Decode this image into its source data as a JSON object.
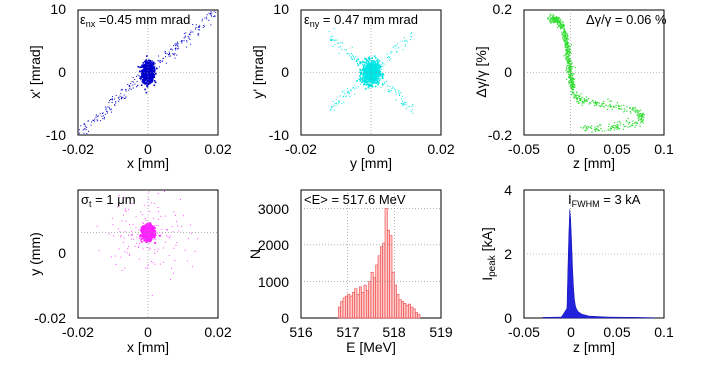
{
  "panels": [
    {
      "id": "xxp",
      "box_title": "ε",
      "box_title_sub": "nx",
      "box_title_rest": " =0.45 mm mrad",
      "xlabel": "x [mm]",
      "ylabel": "x' [mrad]",
      "xticks": [
        "-0.02",
        "0",
        "0.02"
      ],
      "yticks": [
        "10",
        "0",
        "-10"
      ]
    },
    {
      "id": "yyp",
      "box_title": "ε",
      "box_title_sub": "ny",
      "box_title_rest": " = 0.47 mm mrad",
      "xlabel": "y [mm]",
      "ylabel": "y' [mrad]",
      "xticks": [
        "-0.02",
        "0",
        "0.02"
      ],
      "yticks": [
        "10",
        "0",
        "-10"
      ]
    },
    {
      "id": "zdg",
      "box_title": "Δγ/γ = 0.06 %",
      "xlabel": "z [mm]",
      "ylabel": "Δγ/γ [%]",
      "xticks": [
        "-0.05",
        "0",
        "0.05",
        "0.1"
      ],
      "yticks": [
        "0.2",
        "0",
        "-0.2"
      ]
    },
    {
      "id": "xy",
      "box_title": "σ",
      "box_title_sub": "t",
      "box_title_rest": " = 1 μm",
      "xlabel": "x [mm]",
      "ylabel": "y (mm)",
      "xticks": [
        "-0.02",
        "0",
        "0.02"
      ],
      "yticks": [
        "0",
        "-0.02"
      ]
    },
    {
      "id": "ehist",
      "box_title": "<E> = 517.6 MeV",
      "xlabel": "E [MeV]",
      "ylabel": "N",
      "xticks": [
        "516",
        "517",
        "518",
        "519"
      ],
      "yticks": [
        "3000",
        "2000",
        "1000",
        "0"
      ]
    },
    {
      "id": "current",
      "box_title": "I",
      "box_title_sub": "FWHM",
      "box_title_rest": " = 3 kA",
      "xlabel": "z [mm]",
      "ylabel_main": "I",
      "ylabel_sub": "peak",
      "ylabel_rest": " [kA]",
      "xticks": [
        "-0.05",
        "0",
        "0.05",
        "0.1"
      ],
      "yticks": [
        "4",
        "2",
        "0"
      ]
    }
  ],
  "colors": {
    "xxp": "#0000cc",
    "yyp": "#00e5e5",
    "zdg": "#33dd33",
    "xy": "#ff22ff",
    "ehist": "#ee4444",
    "current": "#2222dd"
  },
  "chart_data": [
    {
      "type": "scatter",
      "title": "ε nx =0.45 mm mrad",
      "xlabel": "x [mm]",
      "ylabel": "x' [mrad]",
      "xlim": [
        -0.02,
        0.02
      ],
      "ylim": [
        -10,
        10
      ],
      "grid": true,
      "series": [
        {
          "core_center": [
            0,
            0
          ],
          "core_sigma": [
            0.0008,
            0.8
          ],
          "halo_slope_mrad_per_mm": 500
        }
      ]
    },
    {
      "type": "scatter",
      "title": "ε ny = 0.47 mm mrad",
      "xlabel": "y [mm]",
      "ylabel": "y' [mrad]",
      "xlim": [
        -0.02,
        0.02
      ],
      "ylim": [
        -10,
        10
      ],
      "grid": true,
      "series": [
        {
          "core_center": [
            0,
            0
          ],
          "core_sigma": [
            0.0012,
            0.9
          ],
          "halo": "x-shaped"
        }
      ]
    },
    {
      "type": "scatter",
      "title": "Δγ/γ = 0.06 %",
      "xlabel": "z [mm]",
      "ylabel": "Δγ/γ [%]",
      "xlim": [
        -0.05,
        0.1
      ],
      "ylim": [
        -0.2,
        0.2
      ],
      "grid": true,
      "series": [
        {
          "curve": [
            [
              -0.022,
              0.17
            ],
            [
              -0.014,
              0.17
            ],
            [
              -0.008,
              0.14
            ],
            [
              -0.004,
              0.09
            ],
            [
              -0.002,
              0.04
            ],
            [
              0.0,
              -0.01
            ],
            [
              0.002,
              -0.05
            ],
            [
              0.006,
              -0.08
            ],
            [
              0.014,
              -0.09
            ],
            [
              0.03,
              -0.1
            ],
            [
              0.05,
              -0.11
            ],
            [
              0.07,
              -0.12
            ],
            [
              0.078,
              -0.14
            ],
            [
              0.07,
              -0.16
            ],
            [
              0.05,
              -0.175
            ],
            [
              0.03,
              -0.18
            ],
            [
              0.015,
              -0.175
            ]
          ]
        }
      ]
    },
    {
      "type": "scatter",
      "title": "σ t = 1 μm",
      "xlabel": "x [mm]",
      "ylabel": "y (mm)",
      "xlim": [
        -0.02,
        0.02
      ],
      "ylim": [
        -0.02,
        0.01
      ],
      "grid": true,
      "series": [
        {
          "core_center": [
            0,
            0
          ],
          "core_sigma": [
            0.0008,
            0.0008
          ]
        }
      ]
    },
    {
      "type": "bar",
      "title": "<E> = 517.6 MeV",
      "xlabel": "E [MeV]",
      "ylabel": "N",
      "xlim": [
        516,
        519
      ],
      "ylim": [
        0,
        3500
      ],
      "grid": true,
      "bin_width": 0.05,
      "bins_start": 516.8,
      "values": [
        300,
        450,
        550,
        600,
        650,
        600,
        700,
        800,
        650,
        850,
        700,
        900,
        750,
        1000,
        1250,
        1100,
        1450,
        1700,
        1950,
        2050,
        3000,
        2400,
        2250,
        1250,
        900,
        650,
        500,
        450,
        400,
        350,
        380,
        300,
        250,
        150,
        100
      ]
    },
    {
      "type": "area",
      "title": "I FWHM = 3 kA",
      "xlabel": "z [mm]",
      "ylabel": "I peak [kA]",
      "xlim": [
        -0.05,
        0.1
      ],
      "ylim": [
        0,
        4
      ],
      "grid": true,
      "x": [
        -0.03,
        -0.01,
        -0.004,
        -0.003,
        -0.002,
        -0.001,
        0.0,
        0.001,
        0.002,
        0.003,
        0.004,
        0.005,
        0.006,
        0.008,
        0.012,
        0.02,
        0.04,
        0.07,
        0.09
      ],
      "values": [
        0.02,
        0.03,
        0.3,
        1.5,
        2.6,
        3.4,
        3.1,
        2.4,
        1.6,
        1.0,
        0.6,
        0.4,
        0.3,
        0.2,
        0.12,
        0.06,
        0.03,
        0.02,
        0.01
      ]
    }
  ]
}
